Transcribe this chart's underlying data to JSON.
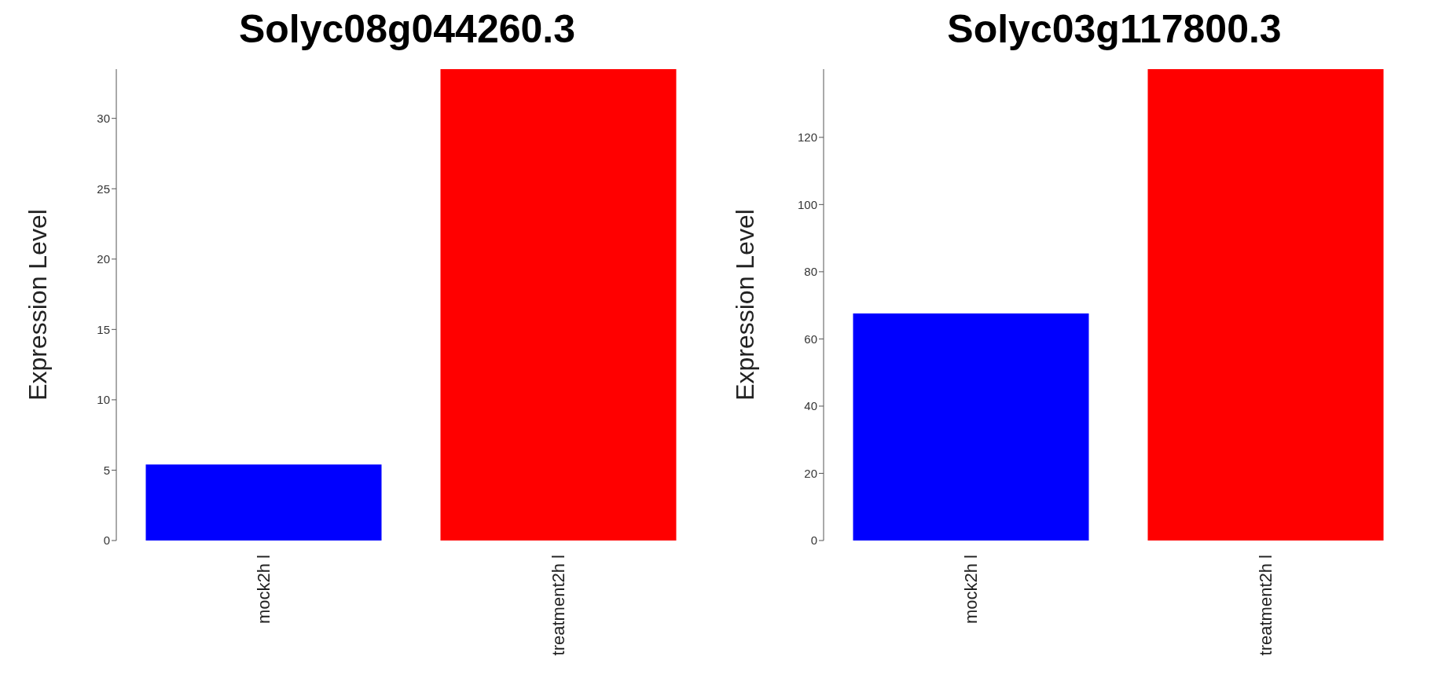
{
  "chart_data": [
    {
      "type": "bar",
      "title": "Solyc08g044260.3",
      "ylabel": "Expression Level",
      "categories": [
        "mock2h l",
        "treatment2h l"
      ],
      "values": [
        5.4,
        33.5
      ],
      "colors": [
        "#0000ff",
        "#ff0000"
      ],
      "ylim": [
        0,
        33.5
      ],
      "yticks": [
        0,
        5,
        10,
        15,
        20,
        25,
        30
      ],
      "grid": false,
      "legend": false
    },
    {
      "type": "bar",
      "title": "Solyc03g117800.3",
      "ylabel": "Expression Level",
      "categories": [
        "mock2h l",
        "treatment2h l"
      ],
      "values": [
        67.6,
        140.3
      ],
      "colors": [
        "#0000ff",
        "#ff0000"
      ],
      "ylim": [
        0,
        140.3
      ],
      "yticks": [
        0,
        20,
        40,
        60,
        80,
        100,
        120
      ],
      "grid": false,
      "legend": false
    }
  ]
}
